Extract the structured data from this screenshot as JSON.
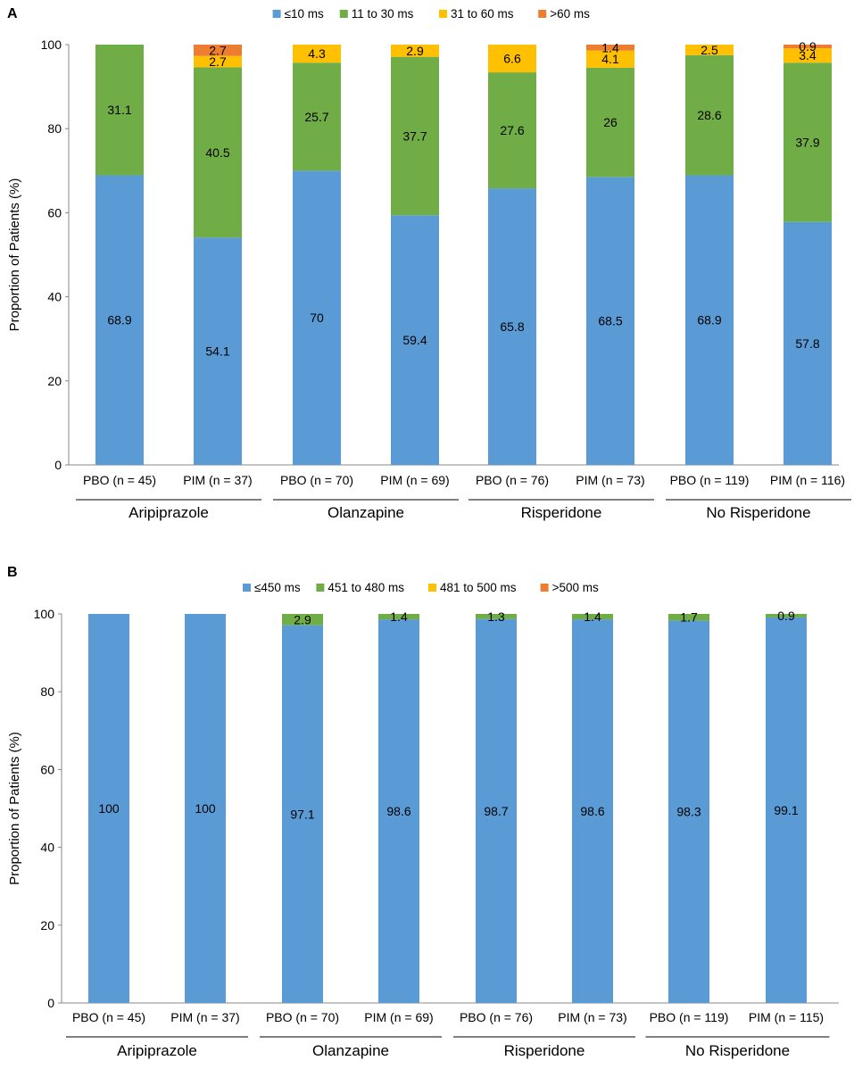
{
  "chart_data": [
    {
      "panel_label": "A",
      "type": "bar",
      "stacked": true,
      "ylabel": "Proportion of Patients (%)",
      "ylim": [
        0,
        100
      ],
      "yticks": [
        0,
        20,
        40,
        60,
        80,
        100
      ],
      "categories": [
        "PBO (n = 45)",
        "PIM (n = 37)",
        "PBO (n = 70)",
        "PIM (n = 69)",
        "PBO (n = 76)",
        "PIM (n = 73)",
        "PBO (n = 119)",
        "PIM (n = 116)"
      ],
      "groups": [
        "Aripiprazole",
        "Olanzapine",
        "Risperidone",
        "No Risperidone"
      ],
      "legend_position": "top-center",
      "series": [
        {
          "name": "≤10 ms",
          "color": "#5B9BD5",
          "values": [
            68.9,
            54.1,
            70,
            59.4,
            65.8,
            68.5,
            68.9,
            57.8
          ],
          "labels": [
            "68.9",
            "54.1",
            "70",
            "59.4",
            "65.8",
            "68.5",
            "68.9",
            "57.8"
          ]
        },
        {
          "name": "11 to 30 ms",
          "color": "#70AD47",
          "values": [
            31.1,
            40.5,
            25.7,
            37.7,
            27.6,
            26,
            28.6,
            37.9
          ],
          "labels": [
            "31.1",
            "40.5",
            "25.7",
            "37.7",
            "27.6",
            "26",
            "28.6",
            "37.9"
          ]
        },
        {
          "name": "31 to 60 ms",
          "color": "#FFC000",
          "values": [
            0,
            2.7,
            4.3,
            2.9,
            6.6,
            4.1,
            2.5,
            3.4
          ],
          "labels": [
            "",
            "2.7",
            "4.3",
            "2.9",
            "6.6",
            "4.1",
            "2.5",
            "3.4"
          ]
        },
        {
          "name": ">60 ms",
          "color": "#ED7D31",
          "values": [
            0,
            2.7,
            0,
            0,
            0,
            1.4,
            0,
            0.9
          ],
          "labels": [
            "",
            "2.7",
            "",
            "",
            "",
            "1.4",
            "",
            "0.9"
          ]
        }
      ]
    },
    {
      "panel_label": "B",
      "type": "bar",
      "stacked": true,
      "ylabel": "Proportion of Patients (%)",
      "ylim": [
        0,
        100
      ],
      "yticks": [
        0,
        20,
        40,
        60,
        80,
        100
      ],
      "categories": [
        "PBO (n = 45)",
        "PIM (n = 37)",
        "PBO (n = 70)",
        "PIM (n = 69)",
        "PBO (n = 76)",
        "PIM (n = 73)",
        "PBO (n = 119)",
        "PIM (n = 115)"
      ],
      "groups": [
        "Aripiprazole",
        "Olanzapine",
        "Risperidone",
        "No Risperidone"
      ],
      "legend_position": "top-center",
      "series": [
        {
          "name": "≤450 ms",
          "color": "#5B9BD5",
          "values": [
            100,
            100,
            97.1,
            98.6,
            98.7,
            98.6,
            98.3,
            99.1
          ],
          "labels": [
            "100",
            "100",
            "97.1",
            "98.6",
            "98.7",
            "98.6",
            "98.3",
            "99.1"
          ]
        },
        {
          "name": "451 to 480 ms",
          "color": "#70AD47",
          "values": [
            0,
            0,
            2.9,
            1.4,
            1.3,
            1.4,
            1.7,
            0.9
          ],
          "labels": [
            "",
            "",
            "2.9",
            "1.4",
            "1.3",
            "1.4",
            "1.7",
            "0.9"
          ]
        },
        {
          "name": "481 to 500 ms",
          "color": "#FFC000",
          "values": [
            0,
            0,
            0,
            0,
            0,
            0,
            0,
            0
          ],
          "labels": [
            "",
            "",
            "",
            "",
            "",
            "",
            "",
            ""
          ]
        },
        {
          "name": ">500 ms",
          "color": "#ED7D31",
          "values": [
            0,
            0,
            0,
            0,
            0,
            0,
            0,
            0
          ],
          "labels": [
            "",
            "",
            "",
            "",
            "",
            "",
            "",
            ""
          ]
        }
      ]
    }
  ]
}
